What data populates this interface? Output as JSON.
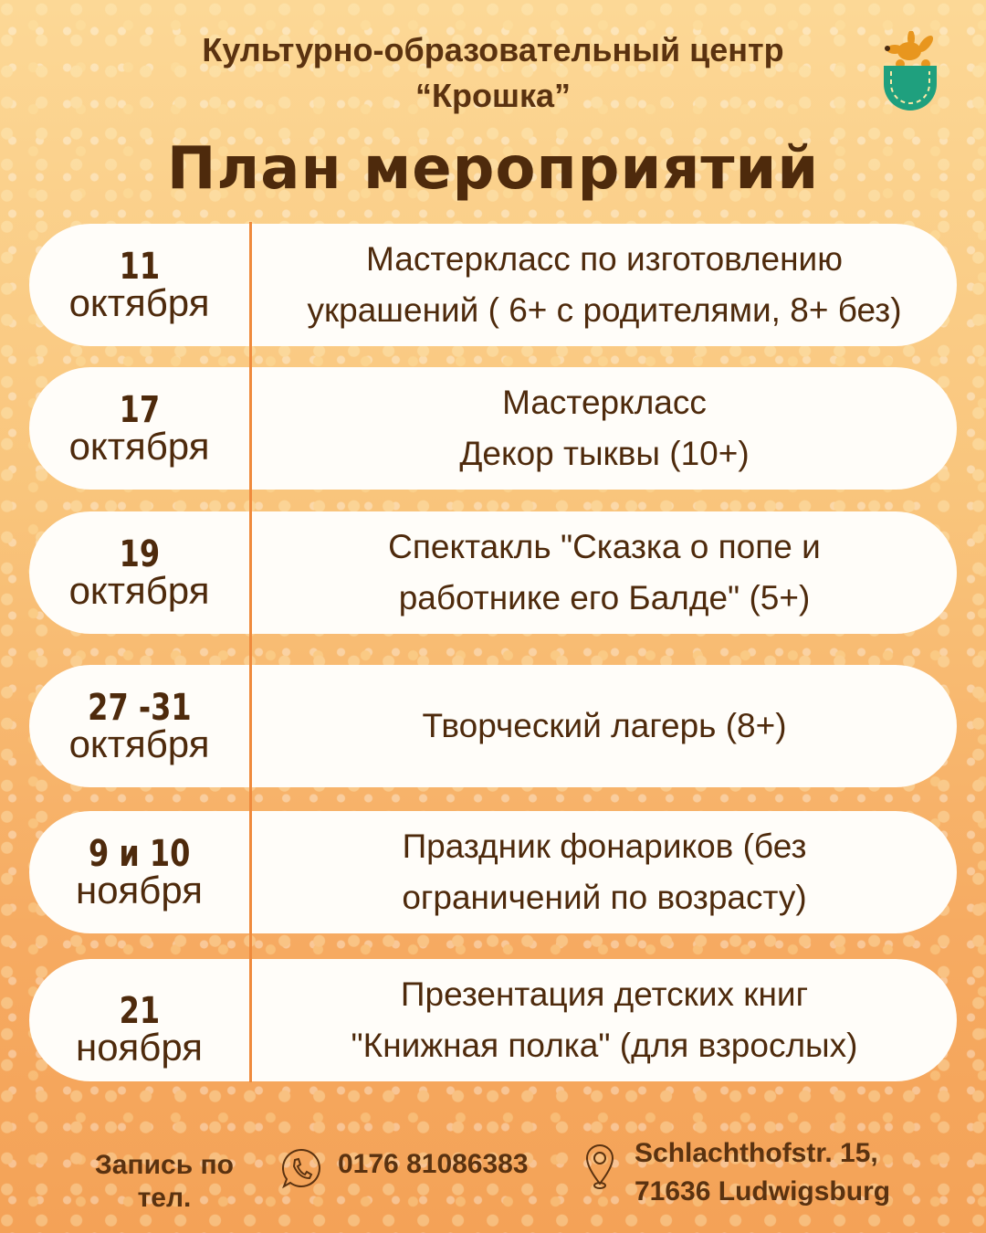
{
  "header": {
    "org_line1": "Культурно-образовательный центр",
    "org_line2": "“Крошка”",
    "title": "План мероприятий",
    "logo_icon": "kangaroo-in-pocket-logo"
  },
  "colors": {
    "text": "#4e2a0c",
    "accent_line": "#ef8a3c",
    "pocket": "#1fa07e",
    "kangaroo": "#e8961e"
  },
  "events": [
    {
      "day": "11",
      "month": "октября",
      "line1": "Мастеркласс по изготовлению",
      "line2": "украшений ( 6+ с родителями, 8+ без)"
    },
    {
      "day": "17",
      "month": "октября",
      "line1": "Мастеркласс",
      "line2": "Декор тыквы (10+)"
    },
    {
      "day": "19",
      "month": "октября",
      "line1": "Спектакль \"Сказка о попе и",
      "line2": "работнике его Балде\" (5+)"
    },
    {
      "day": "27 -31",
      "month": "октября",
      "line1": "Творческий лагерь (8+)",
      "line2": ""
    },
    {
      "day": "9 и 10",
      "month": "ноября",
      "line1": "Праздник фонариков (без",
      "line2": "ограничений по возрасту)"
    },
    {
      "day": "21",
      "month": "ноября",
      "line1": "Презентация детских книг",
      "line2": "\"Книжная полка\" (для взрослых)"
    }
  ],
  "footer": {
    "signup_line1": "Запись по",
    "signup_line2": "тел.",
    "phone": "0176 81086383",
    "phone_icon": "whatsapp-phone-icon",
    "address_line1": "Schlachthofstr. 15,",
    "address_line2": "71636 Ludwigsburg",
    "address_icon": "map-pin-icon"
  }
}
